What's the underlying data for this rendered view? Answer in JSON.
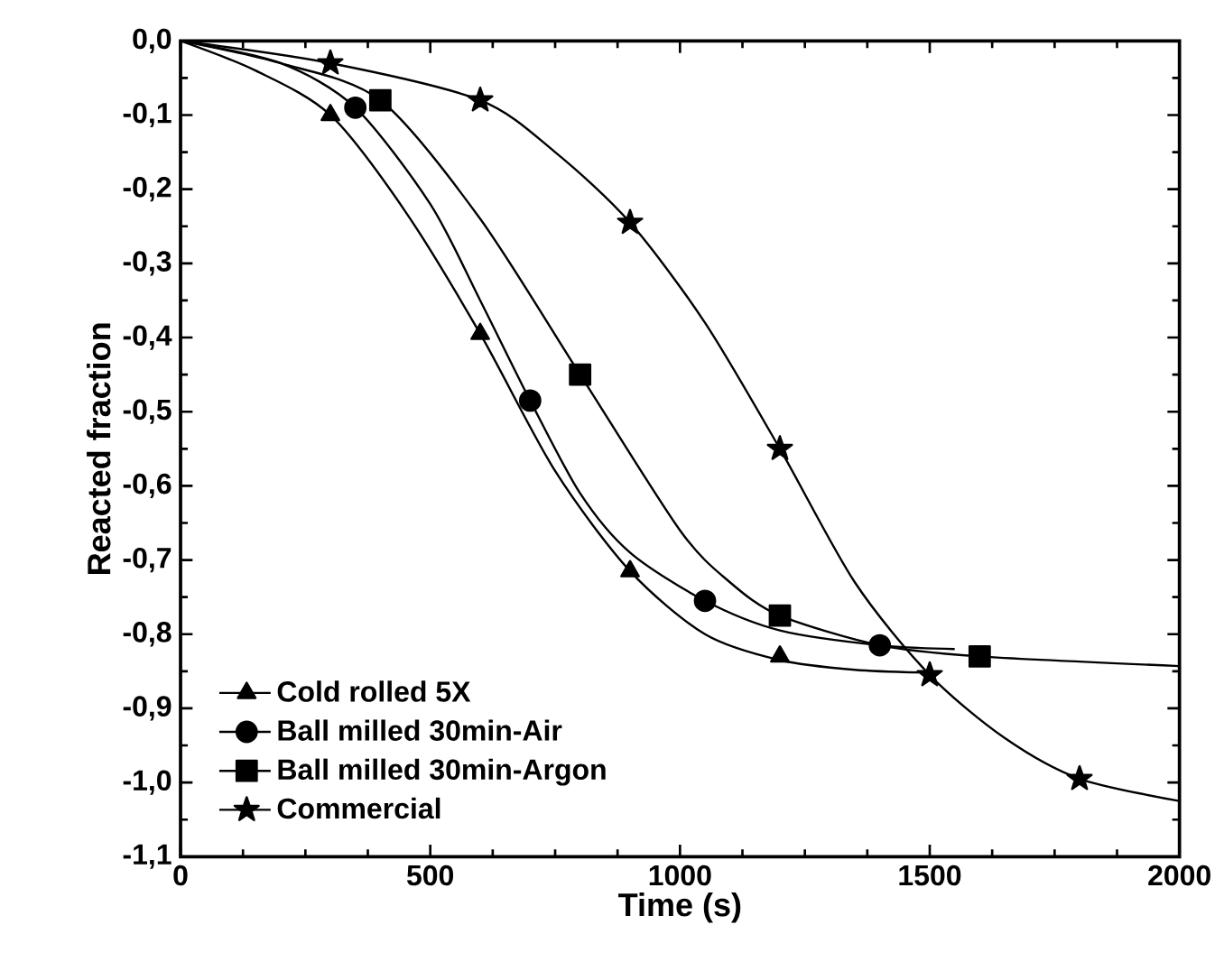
{
  "chart_data": {
    "type": "line",
    "xlabel": "Time (s)",
    "ylabel": "Reacted fraction",
    "xlim": [
      0,
      2000
    ],
    "ylim": [
      -1.1,
      0
    ],
    "xticks": [
      0,
      500,
      1000,
      1500,
      2000
    ],
    "yticks": [
      {
        "value": 0,
        "label": "0,0"
      },
      {
        "value": -0.1,
        "label": "-0,1"
      },
      {
        "value": -0.2,
        "label": "-0,2"
      },
      {
        "value": -0.3,
        "label": "-0,3"
      },
      {
        "value": -0.4,
        "label": "-0,4"
      },
      {
        "value": -0.5,
        "label": "-0,5"
      },
      {
        "value": -0.6,
        "label": "-0,6"
      },
      {
        "value": -0.7,
        "label": "-0,7"
      },
      {
        "value": -0.8,
        "label": "-0,8"
      },
      {
        "value": -0.9,
        "label": "-0,9"
      },
      {
        "value": -1.0,
        "label": "-1,0"
      },
      {
        "value": -1.1,
        "label": "-1,1"
      }
    ],
    "legend": "bottom left",
    "series": [
      {
        "color": "#000000",
        "marker": "none",
        "x": [
          0,
          150,
          300,
          450,
          600,
          750,
          900,
          1050,
          1200,
          1350,
          1500
        ],
        "values": [
          0,
          -0.04,
          -0.1,
          -0.23,
          -0.395,
          -0.58,
          -0.715,
          -0.8,
          -0.835,
          -0.848,
          -0.852
        ]
      },
      {
        "color": "#000000",
        "marker": "none",
        "x": [
          0,
          200,
          350,
          500,
          600,
          700,
          800,
          900,
          1050,
          1200,
          1400,
          1550
        ],
        "values": [
          0,
          -0.03,
          -0.09,
          -0.22,
          -0.35,
          -0.485,
          -0.61,
          -0.69,
          -0.755,
          -0.795,
          -0.815,
          -0.82
        ]
      },
      {
        "color": "#000000",
        "marker": "none",
        "x": [
          0,
          200,
          400,
          600,
          800,
          1000,
          1100,
          1200,
          1400,
          1600,
          2000
        ],
        "values": [
          0,
          -0.03,
          -0.08,
          -0.24,
          -0.45,
          -0.66,
          -0.73,
          -0.775,
          -0.815,
          -0.83,
          -0.843
        ]
      },
      {
        "color": "#000000",
        "marker": "none",
        "x": [
          0,
          300,
          600,
          750,
          900,
          1050,
          1200,
          1350,
          1500,
          1650,
          1800,
          2000
        ],
        "values": [
          0,
          -0.03,
          -0.08,
          -0.15,
          -0.245,
          -0.38,
          -0.55,
          -0.73,
          -0.855,
          -0.94,
          -0.995,
          -1.025
        ]
      },
      {
        "type": "scatter",
        "name": "Cold rolled 5X",
        "color": "#000000",
        "marker": "triangle",
        "x": [
          300,
          600,
          900,
          1200
        ],
        "values": [
          -0.1,
          -0.395,
          -0.715,
          -0.83
        ]
      },
      {
        "type": "scatter",
        "name": "Ball milled 30min-Air",
        "color": "#000000",
        "marker": "circle",
        "x": [
          350,
          700,
          1050,
          1400
        ],
        "values": [
          -0.09,
          -0.485,
          -0.755,
          -0.815
        ]
      },
      {
        "type": "scatter",
        "name": "Ball milled 30min-Argon",
        "color": "#000000",
        "marker": "square",
        "x": [
          400,
          800,
          1200,
          1600
        ],
        "values": [
          -0.08,
          -0.45,
          -0.775,
          -0.83
        ]
      },
      {
        "type": "scatter",
        "name": "Commercial",
        "color": "#000000",
        "marker": "star",
        "x": [
          300,
          600,
          900,
          1200,
          1500,
          1800
        ],
        "values": [
          -0.03,
          -0.08,
          -0.245,
          -0.55,
          -0.855,
          -0.995
        ]
      }
    ]
  }
}
